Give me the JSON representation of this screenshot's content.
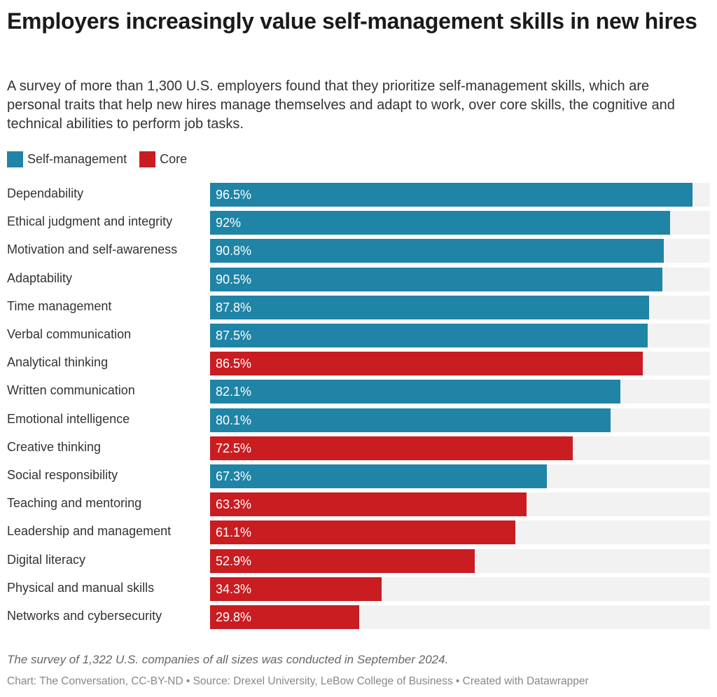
{
  "title": "Employers increasingly value self-management skills in new hires",
  "subtitle": "A survey of more than 1,300 U.S. employers found that they prioritize self-management skills, which are personal traits that help new hires manage themselves and adapt to work, over core skills, the cognitive and technical abilities to perform job tasks.",
  "legend": [
    {
      "label": "Self-management",
      "color": "#1f84a6"
    },
    {
      "label": "Core",
      "color": "#c91d22"
    }
  ],
  "colors": {
    "self_management": "#1f84a6",
    "core": "#c91d22",
    "track": "#f2f2f2"
  },
  "note": "The survey of 1,322 U.S. companies of all sizes was conducted in September 2024.",
  "credit": "Chart: The Conversation, CC-BY-ND • Source: Drexel University, LeBow College of Business • Created with Datawrapper",
  "chart_data": {
    "type": "bar",
    "orientation": "horizontal",
    "xlim": [
      0,
      100
    ],
    "unit": "%",
    "grid": false,
    "legend_position": "top-left",
    "categories": [
      "Dependability",
      "Ethical judgment and integrity",
      "Motivation and self-awareness",
      "Adaptability",
      "Time management",
      "Verbal communication",
      "Analytical thinking",
      "Written communication",
      "Emotional intelligence",
      "Creative thinking",
      "Social responsibility",
      "Teaching and mentoring",
      "Leadership and management",
      "Digital literacy",
      "Physical and manual skills",
      "Networks and cybersecurity"
    ],
    "values": [
      96.5,
      92,
      90.8,
      90.5,
      87.8,
      87.5,
      86.5,
      82.1,
      80.1,
      72.5,
      67.3,
      63.3,
      61.1,
      52.9,
      34.3,
      29.8
    ],
    "value_labels": [
      "96.5%",
      "92%",
      "90.8%",
      "90.5%",
      "87.8%",
      "87.5%",
      "86.5%",
      "82.1%",
      "80.1%",
      "72.5%",
      "67.3%",
      "63.3%",
      "61.1%",
      "52.9%",
      "34.3%",
      "29.8%"
    ],
    "groups": [
      "Self-management",
      "Self-management",
      "Self-management",
      "Self-management",
      "Self-management",
      "Self-management",
      "Core",
      "Self-management",
      "Self-management",
      "Core",
      "Self-management",
      "Core",
      "Core",
      "Core",
      "Core",
      "Core"
    ]
  }
}
